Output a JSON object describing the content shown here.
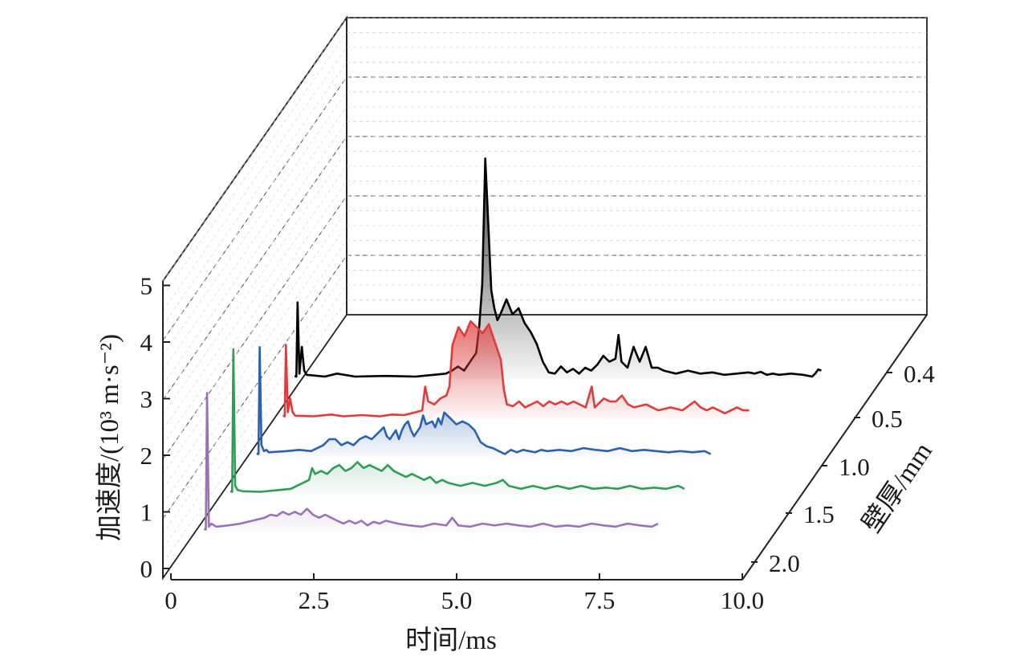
{
  "chart_data": {
    "type": "line",
    "title": "",
    "xlabel": "时间/ms",
    "ylabel": "加速度/(10³ m·s⁻²)",
    "zlabel": "壁厚/mm",
    "x_ticks": [
      "0",
      "2.5",
      "5.0",
      "7.5",
      "10.0"
    ],
    "y_ticks": [
      "0",
      "1",
      "2",
      "3",
      "4",
      "5"
    ],
    "z_ticks": [
      "0.4",
      "0.5",
      "1.0",
      "1.5",
      "2.0"
    ],
    "xlim": [
      0,
      10
    ],
    "ylim": [
      0,
      5
    ],
    "grid": true,
    "legend": "none",
    "series": [
      {
        "wall_thickness": "0.4",
        "color": "#000000",
        "points": [
          [
            0.0,
            0.06
          ],
          [
            0.03,
            0.05
          ],
          [
            0.05,
            1.3
          ],
          [
            0.08,
            0.1
          ],
          [
            0.12,
            0.55
          ],
          [
            0.16,
            0.15
          ],
          [
            0.2,
            0.08
          ],
          [
            0.5,
            0.05
          ],
          [
            0.7,
            0.1
          ],
          [
            1.0,
            0.05
          ],
          [
            1.5,
            0.06
          ],
          [
            2.0,
            0.05
          ],
          [
            2.3,
            0.08
          ],
          [
            2.5,
            0.1
          ],
          [
            2.6,
            0.15
          ],
          [
            2.7,
            0.22
          ],
          [
            2.8,
            0.15
          ],
          [
            2.9,
            0.3
          ],
          [
            3.0,
            0.45
          ],
          [
            3.05,
            0.9
          ],
          [
            3.1,
            1.6
          ],
          [
            3.15,
            3.72
          ],
          [
            3.2,
            2.6
          ],
          [
            3.25,
            1.5
          ],
          [
            3.3,
            1.2
          ],
          [
            3.35,
            1.0
          ],
          [
            3.4,
            1.1
          ],
          [
            3.5,
            1.35
          ],
          [
            3.6,
            1.1
          ],
          [
            3.7,
            1.2
          ],
          [
            3.8,
            0.95
          ],
          [
            3.9,
            0.8
          ],
          [
            4.0,
            0.6
          ],
          [
            4.1,
            0.3
          ],
          [
            4.2,
            0.12
          ],
          [
            4.3,
            0.1
          ],
          [
            4.4,
            0.22
          ],
          [
            4.5,
            0.12
          ],
          [
            4.6,
            0.18
          ],
          [
            4.7,
            0.1
          ],
          [
            4.8,
            0.2
          ],
          [
            4.9,
            0.15
          ],
          [
            5.0,
            0.25
          ],
          [
            5.1,
            0.4
          ],
          [
            5.2,
            0.3
          ],
          [
            5.3,
            0.35
          ],
          [
            5.35,
            0.75
          ],
          [
            5.4,
            0.3
          ],
          [
            5.5,
            0.2
          ],
          [
            5.6,
            0.55
          ],
          [
            5.7,
            0.3
          ],
          [
            5.8,
            0.55
          ],
          [
            5.9,
            0.2
          ],
          [
            6.0,
            0.2
          ],
          [
            6.1,
            0.15
          ],
          [
            6.3,
            0.1
          ],
          [
            6.5,
            0.15
          ],
          [
            6.7,
            0.1
          ],
          [
            6.9,
            0.12
          ],
          [
            7.1,
            0.08
          ],
          [
            7.3,
            0.1
          ],
          [
            7.5,
            0.12
          ],
          [
            7.6,
            0.1
          ],
          [
            7.7,
            0.13
          ],
          [
            7.8,
            0.08
          ],
          [
            7.9,
            0.1
          ],
          [
            8.0,
            0.08
          ],
          [
            8.2,
            0.1
          ],
          [
            8.4,
            0.08
          ],
          [
            8.55,
            0.05
          ],
          [
            8.6,
            0.1
          ],
          [
            8.65,
            0.17
          ],
          [
            8.7,
            0.15
          ]
        ]
      },
      {
        "wall_thickness": "0.5",
        "color": "#e03c3c",
        "points": [
          [
            0.0,
            0.06
          ],
          [
            0.03,
            0.05
          ],
          [
            0.05,
            1.25
          ],
          [
            0.08,
            0.12
          ],
          [
            0.12,
            0.35
          ],
          [
            0.16,
            0.12
          ],
          [
            0.2,
            0.06
          ],
          [
            0.5,
            0.05
          ],
          [
            0.8,
            0.08
          ],
          [
            1.0,
            0.05
          ],
          [
            1.3,
            0.07
          ],
          [
            1.6,
            0.05
          ],
          [
            1.8,
            0.08
          ],
          [
            2.0,
            0.07
          ],
          [
            2.2,
            0.12
          ],
          [
            2.3,
            0.15
          ],
          [
            2.35,
            0.55
          ],
          [
            2.4,
            0.3
          ],
          [
            2.5,
            0.25
          ],
          [
            2.6,
            0.35
          ],
          [
            2.7,
            0.4
          ],
          [
            2.75,
            0.55
          ],
          [
            2.8,
            1.25
          ],
          [
            2.9,
            1.55
          ],
          [
            3.0,
            1.4
          ],
          [
            3.1,
            1.65
          ],
          [
            3.2,
            1.55
          ],
          [
            3.3,
            1.45
          ],
          [
            3.4,
            1.6
          ],
          [
            3.5,
            1.3
          ],
          [
            3.6,
            1.0
          ],
          [
            3.65,
            0.5
          ],
          [
            3.7,
            0.25
          ],
          [
            3.8,
            0.22
          ],
          [
            3.9,
            0.3
          ],
          [
            4.0,
            0.2
          ],
          [
            4.1,
            0.25
          ],
          [
            4.2,
            0.3
          ],
          [
            4.3,
            0.22
          ],
          [
            4.4,
            0.3
          ],
          [
            4.5,
            0.25
          ],
          [
            4.6,
            0.3
          ],
          [
            4.7,
            0.25
          ],
          [
            4.8,
            0.3
          ],
          [
            5.0,
            0.2
          ],
          [
            5.1,
            0.55
          ],
          [
            5.15,
            0.2
          ],
          [
            5.3,
            0.35
          ],
          [
            5.4,
            0.3
          ],
          [
            5.5,
            0.3
          ],
          [
            5.6,
            0.4
          ],
          [
            5.7,
            0.25
          ],
          [
            5.8,
            0.2
          ],
          [
            6.0,
            0.25
          ],
          [
            6.2,
            0.15
          ],
          [
            6.4,
            0.2
          ],
          [
            6.6,
            0.15
          ],
          [
            6.8,
            0.3
          ],
          [
            6.9,
            0.2
          ],
          [
            7.0,
            0.15
          ],
          [
            7.1,
            0.2
          ],
          [
            7.3,
            0.1
          ],
          [
            7.5,
            0.2
          ],
          [
            7.6,
            0.15
          ],
          [
            7.7,
            0.15
          ]
        ]
      },
      {
        "wall_thickness": "1.0",
        "color": "#2a62b0",
        "points": [
          [
            0.0,
            0.06
          ],
          [
            0.03,
            0.05
          ],
          [
            0.05,
            1.85
          ],
          [
            0.08,
            0.2
          ],
          [
            0.12,
            0.1
          ],
          [
            0.16,
            0.12
          ],
          [
            0.2,
            0.08
          ],
          [
            0.5,
            0.1
          ],
          [
            0.7,
            0.12
          ],
          [
            0.9,
            0.1
          ],
          [
            1.1,
            0.2
          ],
          [
            1.2,
            0.3
          ],
          [
            1.3,
            0.3
          ],
          [
            1.4,
            0.2
          ],
          [
            1.5,
            0.25
          ],
          [
            1.6,
            0.2
          ],
          [
            1.7,
            0.3
          ],
          [
            1.8,
            0.35
          ],
          [
            1.9,
            0.3
          ],
          [
            2.0,
            0.4
          ],
          [
            2.1,
            0.5
          ],
          [
            2.15,
            0.35
          ],
          [
            2.2,
            0.3
          ],
          [
            2.3,
            0.45
          ],
          [
            2.35,
            0.3
          ],
          [
            2.4,
            0.45
          ],
          [
            2.45,
            0.55
          ],
          [
            2.5,
            0.6
          ],
          [
            2.55,
            0.45
          ],
          [
            2.6,
            0.35
          ],
          [
            2.7,
            0.5
          ],
          [
            2.75,
            0.7
          ],
          [
            2.8,
            0.55
          ],
          [
            2.9,
            0.6
          ],
          [
            2.95,
            0.5
          ],
          [
            3.0,
            0.65
          ],
          [
            3.05,
            0.55
          ],
          [
            3.1,
            0.75
          ],
          [
            3.2,
            0.65
          ],
          [
            3.3,
            0.55
          ],
          [
            3.4,
            0.6
          ],
          [
            3.5,
            0.55
          ],
          [
            3.6,
            0.45
          ],
          [
            3.7,
            0.25
          ],
          [
            3.8,
            0.18
          ],
          [
            3.9,
            0.15
          ],
          [
            4.0,
            0.1
          ],
          [
            4.1,
            0.05
          ],
          [
            4.2,
            0.12
          ],
          [
            4.3,
            0.08
          ],
          [
            4.4,
            0.12
          ],
          [
            4.5,
            0.1
          ],
          [
            4.6,
            0.08
          ],
          [
            4.7,
            0.12
          ],
          [
            4.8,
            0.1
          ],
          [
            5.0,
            0.12
          ],
          [
            5.2,
            0.1
          ],
          [
            5.4,
            0.15
          ],
          [
            5.6,
            0.12
          ],
          [
            5.8,
            0.1
          ],
          [
            6.0,
            0.15
          ],
          [
            6.2,
            0.1
          ],
          [
            6.4,
            0.12
          ],
          [
            6.6,
            0.1
          ],
          [
            6.8,
            0.08
          ],
          [
            7.0,
            0.1
          ],
          [
            7.2,
            0.08
          ],
          [
            7.4,
            0.1
          ],
          [
            7.5,
            0.05
          ]
        ]
      },
      {
        "wall_thickness": "1.5",
        "color": "#2e9e57",
        "points": [
          [
            0.0,
            0.06
          ],
          [
            0.03,
            0.05
          ],
          [
            0.05,
            2.45
          ],
          [
            0.08,
            0.15
          ],
          [
            0.12,
            0.08
          ],
          [
            0.2,
            0.06
          ],
          [
            0.5,
            0.05
          ],
          [
            0.8,
            0.08
          ],
          [
            1.0,
            0.1
          ],
          [
            1.1,
            0.15
          ],
          [
            1.2,
            0.2
          ],
          [
            1.3,
            0.25
          ],
          [
            1.35,
            0.45
          ],
          [
            1.4,
            0.35
          ],
          [
            1.5,
            0.4
          ],
          [
            1.6,
            0.35
          ],
          [
            1.7,
            0.45
          ],
          [
            1.8,
            0.5
          ],
          [
            1.9,
            0.4
          ],
          [
            2.0,
            0.45
          ],
          [
            2.1,
            0.55
          ],
          [
            2.2,
            0.45
          ],
          [
            2.3,
            0.5
          ],
          [
            2.4,
            0.45
          ],
          [
            2.5,
            0.4
          ],
          [
            2.6,
            0.5
          ],
          [
            2.7,
            0.4
          ],
          [
            2.8,
            0.35
          ],
          [
            2.9,
            0.3
          ],
          [
            3.0,
            0.35
          ],
          [
            3.1,
            0.3
          ],
          [
            3.2,
            0.25
          ],
          [
            3.3,
            0.3
          ],
          [
            3.4,
            0.2
          ],
          [
            3.5,
            0.25
          ],
          [
            3.6,
            0.2
          ],
          [
            3.8,
            0.15
          ],
          [
            4.0,
            0.2
          ],
          [
            4.2,
            0.15
          ],
          [
            4.4,
            0.2
          ],
          [
            4.5,
            0.25
          ],
          [
            4.6,
            0.15
          ],
          [
            4.8,
            0.1
          ],
          [
            5.0,
            0.15
          ],
          [
            5.2,
            0.1
          ],
          [
            5.4,
            0.15
          ],
          [
            5.6,
            0.1
          ],
          [
            5.8,
            0.15
          ],
          [
            6.0,
            0.1
          ],
          [
            6.2,
            0.12
          ],
          [
            6.4,
            0.1
          ],
          [
            6.6,
            0.15
          ],
          [
            6.8,
            0.1
          ],
          [
            7.0,
            0.12
          ],
          [
            7.2,
            0.1
          ],
          [
            7.4,
            0.15
          ],
          [
            7.5,
            0.1
          ]
        ]
      },
      {
        "wall_thickness": "2.0",
        "color": "#9b72b8",
        "points": [
          [
            0.0,
            0.06
          ],
          [
            0.03,
            0.05
          ],
          [
            0.05,
            2.35
          ],
          [
            0.08,
            0.1
          ],
          [
            0.12,
            0.15
          ],
          [
            0.2,
            0.1
          ],
          [
            0.4,
            0.12
          ],
          [
            0.6,
            0.15
          ],
          [
            0.8,
            0.2
          ],
          [
            1.0,
            0.25
          ],
          [
            1.1,
            0.3
          ],
          [
            1.2,
            0.28
          ],
          [
            1.3,
            0.35
          ],
          [
            1.4,
            0.3
          ],
          [
            1.5,
            0.35
          ],
          [
            1.6,
            0.3
          ],
          [
            1.7,
            0.4
          ],
          [
            1.8,
            0.3
          ],
          [
            1.9,
            0.25
          ],
          [
            2.0,
            0.3
          ],
          [
            2.1,
            0.25
          ],
          [
            2.2,
            0.2
          ],
          [
            2.3,
            0.15
          ],
          [
            2.4,
            0.2
          ],
          [
            2.5,
            0.15
          ],
          [
            2.6,
            0.2
          ],
          [
            2.7,
            0.12
          ],
          [
            2.8,
            0.18
          ],
          [
            2.9,
            0.15
          ],
          [
            3.0,
            0.2
          ],
          [
            3.2,
            0.15
          ],
          [
            3.4,
            0.12
          ],
          [
            3.6,
            0.1
          ],
          [
            3.8,
            0.15
          ],
          [
            4.0,
            0.12
          ],
          [
            4.1,
            0.25
          ],
          [
            4.2,
            0.12
          ],
          [
            4.4,
            0.1
          ],
          [
            4.6,
            0.15
          ],
          [
            4.8,
            0.12
          ],
          [
            5.0,
            0.15
          ],
          [
            5.2,
            0.12
          ],
          [
            5.4,
            0.1
          ],
          [
            5.6,
            0.15
          ],
          [
            5.8,
            0.1
          ],
          [
            6.0,
            0.12
          ],
          [
            6.2,
            0.1
          ],
          [
            6.4,
            0.15
          ],
          [
            6.6,
            0.12
          ],
          [
            6.8,
            0.1
          ],
          [
            7.0,
            0.15
          ],
          [
            7.2,
            0.12
          ],
          [
            7.4,
            0.1
          ],
          [
            7.5,
            0.15
          ]
        ]
      }
    ]
  }
}
